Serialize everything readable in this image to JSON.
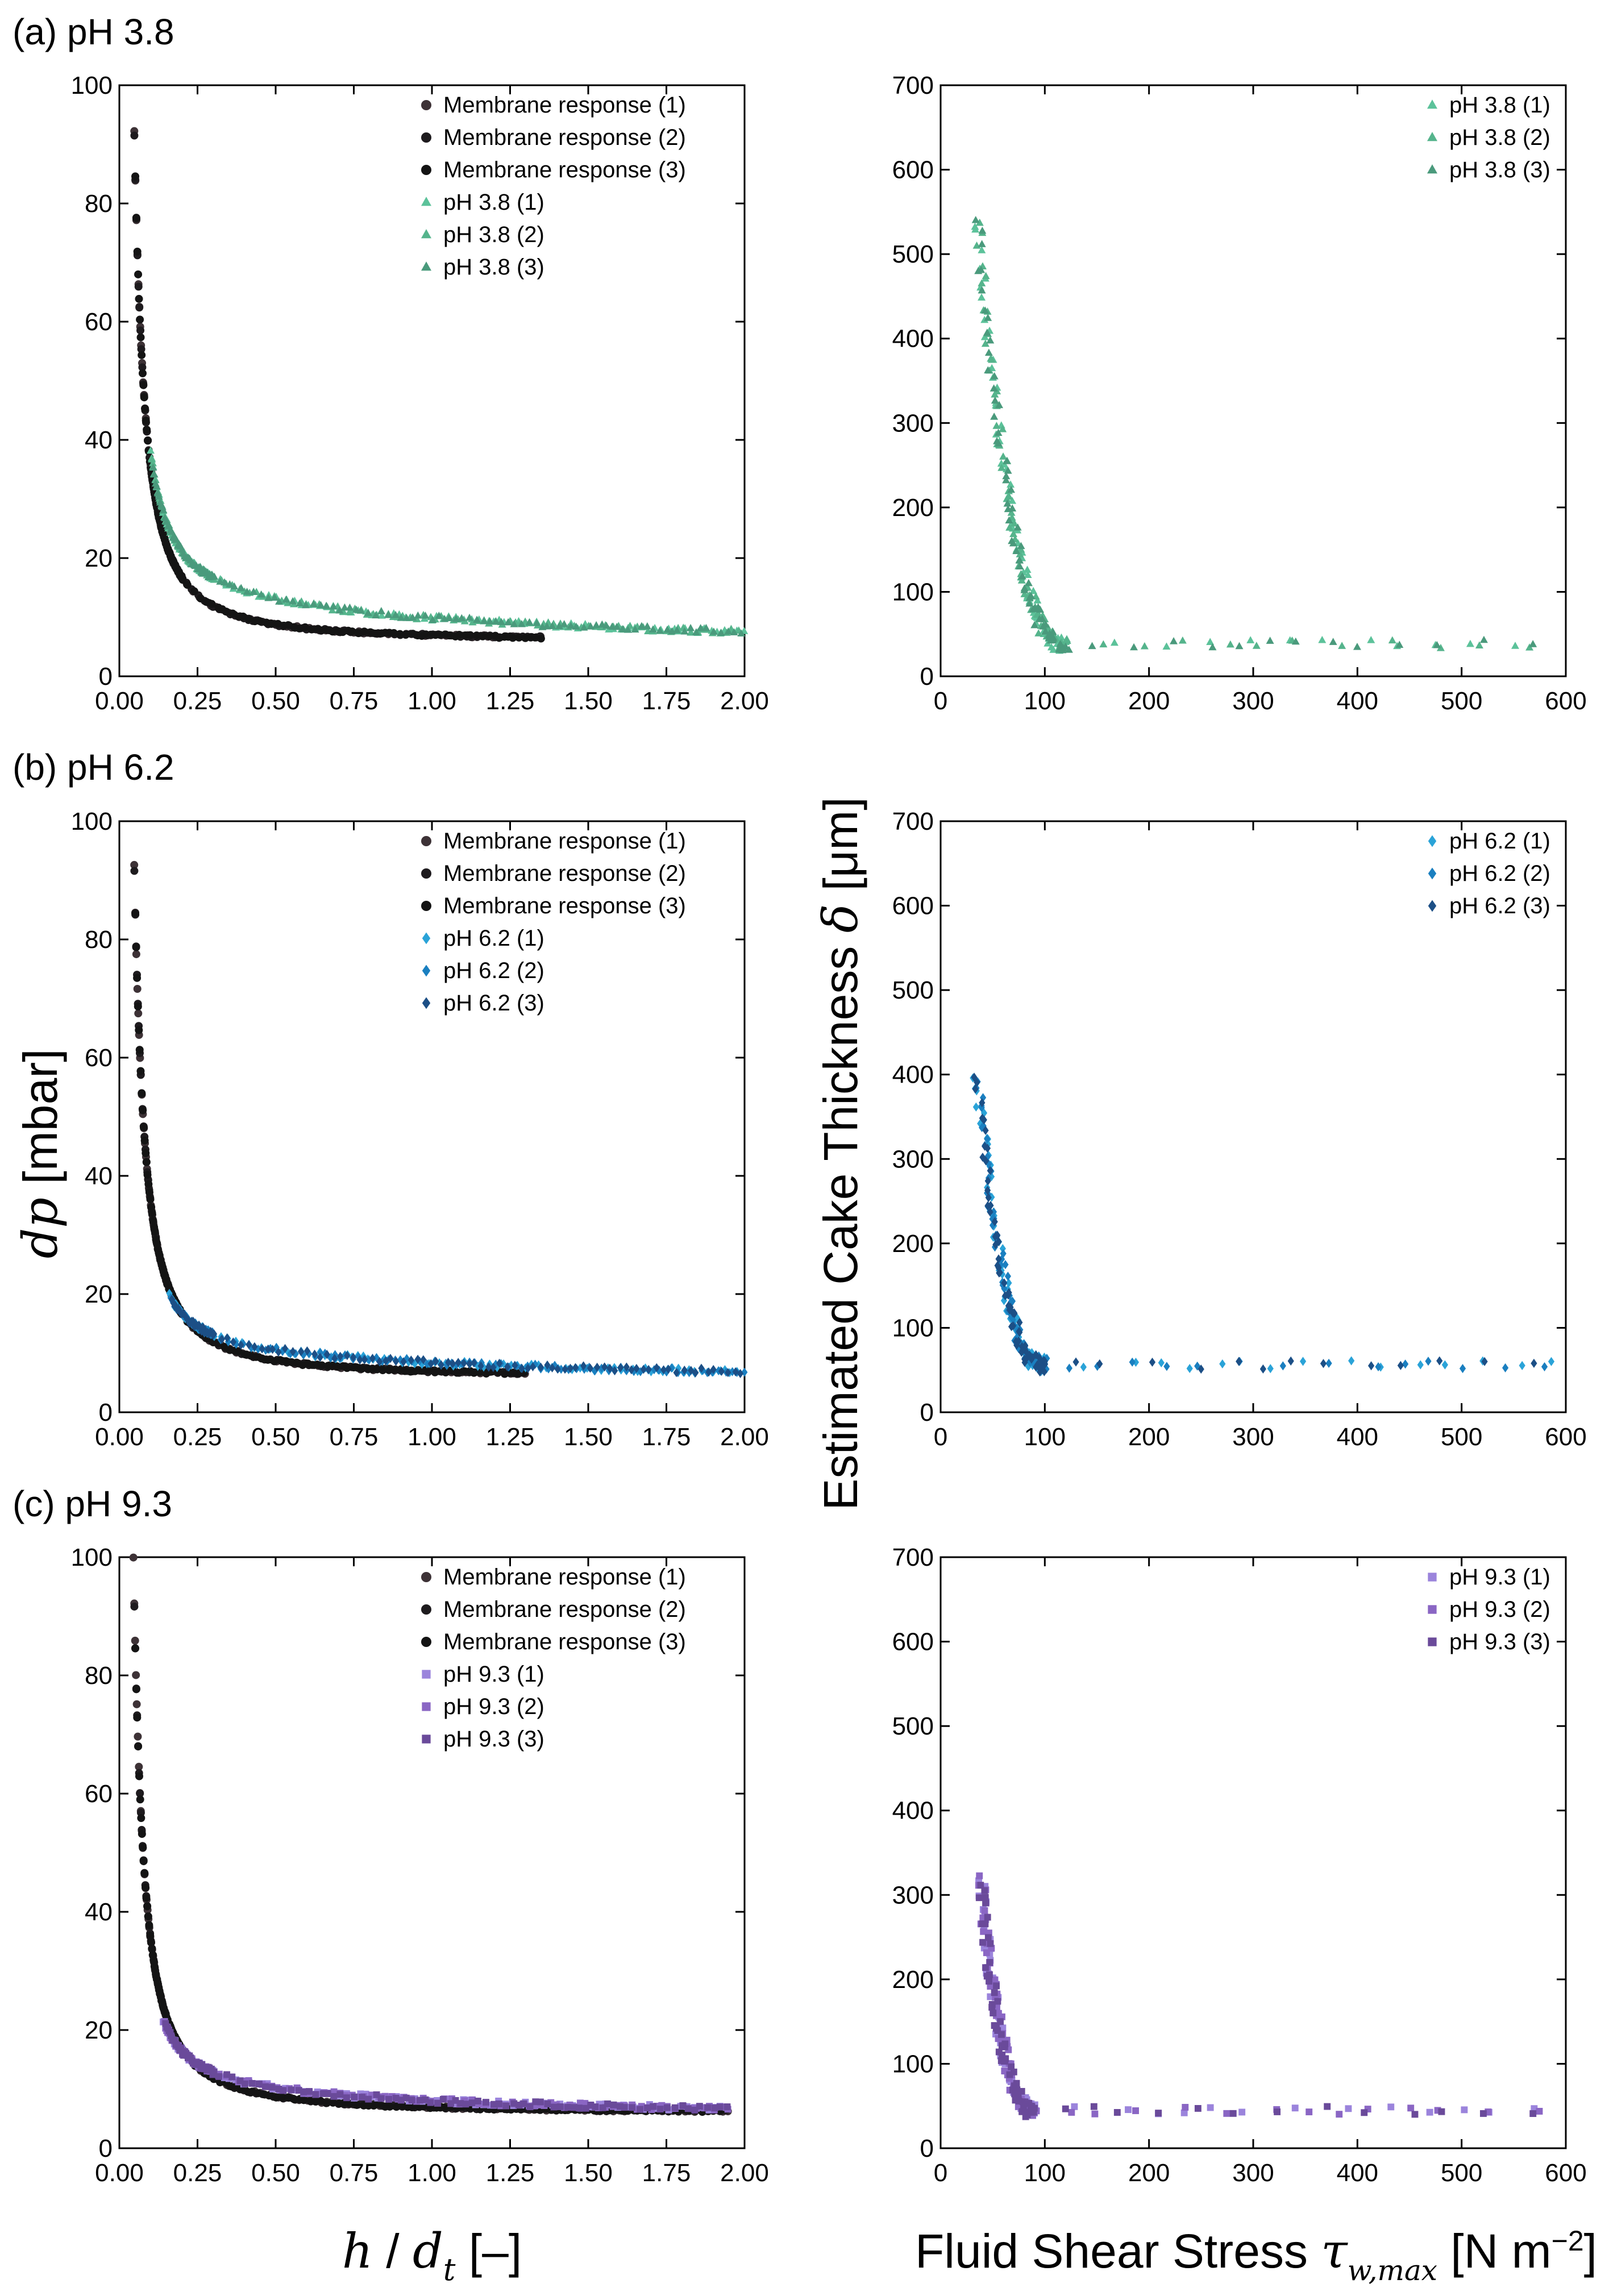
{
  "figure": {
    "ylabel_left": "dp [mbar]",
    "ylabel_left_var": "dp",
    "ylabel_left_unit": " [mbar]",
    "xlabel_left_var_h": "h",
    "xlabel_left_slash": " / ",
    "xlabel_left_var_d": "d",
    "xlabel_left_sub": "t",
    "xlabel_left_unit": " [–]",
    "ylabel_right_text": "Estimated Cake Thickness ",
    "ylabel_right_var": "δ",
    "ylabel_right_unit": " [μm]",
    "xlabel_right_text": "Fluid Shear Stress ",
    "xlabel_right_var": "τ",
    "xlabel_right_sub": "w,max",
    "xlabel_right_unit": " [N m",
    "xlabel_right_exp": "−2",
    "xlabel_right_close": "]"
  },
  "colors": {
    "membrane": [
      "#3d3236",
      "#1e1b1e",
      "#141414"
    ],
    "ph38": [
      "#5cc29a",
      "#55b48c",
      "#4a9a7c"
    ],
    "ph62": [
      "#2aa3d8",
      "#1a7fc0",
      "#1c4f86"
    ],
    "ph93": [
      "#9b84dc",
      "#8a66c4",
      "#6a4a9a"
    ]
  },
  "chart_data": [
    {
      "id": "a-left",
      "panel_label": "(a) pH 3.8",
      "type": "scatter",
      "xlim": [
        0,
        2
      ],
      "ylim": [
        0,
        100
      ],
      "xticks": [
        "0.00",
        "0.25",
        "0.50",
        "0.75",
        "1.00",
        "1.25",
        "1.50",
        "1.75",
        "2.00"
      ],
      "yticks": [
        "0",
        "20",
        "40",
        "60",
        "80",
        "100"
      ],
      "legend": [
        "Membrane response (1)",
        "Membrane response (2)",
        "Membrane response (3)",
        "pH 3.8 (1)",
        "pH 3.8 (2)",
        "pH 3.8 (3)"
      ],
      "membrane_curve": {
        "x_start": 0.045,
        "x_end": 1.35,
        "floor": 5.9,
        "a": 1.05,
        "p": 1.45
      },
      "sample_curve": {
        "x_start": 0.1,
        "x_end": 2.0,
        "floor": 6.0,
        "a": 0.8,
        "p": 1.5,
        "plateau": 7.5,
        "decay": 0.9
      },
      "series_marker": "triangle"
    },
    {
      "id": "a-right",
      "type": "scatter",
      "xlim": [
        0,
        600
      ],
      "ylim": [
        0,
        700
      ],
      "xticks": [
        "0",
        "100",
        "200",
        "300",
        "400",
        "500",
        "600"
      ],
      "yticks": [
        "0",
        "100",
        "200",
        "300",
        "400",
        "500",
        "600",
        "700"
      ],
      "legend": [
        "pH 3.8 (1)",
        "pH 3.8 (2)",
        "pH 3.8 (3)"
      ],
      "thickness_curve": {
        "x_peak": 35,
        "y_peak": 540,
        "x_knee": 120,
        "floor": 38,
        "x_end": 575
      },
      "series_marker": "triangle"
    },
    {
      "id": "b-left",
      "panel_label": "(b) pH 6.2",
      "type": "scatter",
      "xlim": [
        0,
        2
      ],
      "ylim": [
        0,
        100
      ],
      "xticks": [
        "0.00",
        "0.25",
        "0.50",
        "0.75",
        "1.00",
        "1.25",
        "1.50",
        "1.75",
        "2.00"
      ],
      "yticks": [
        "0",
        "20",
        "40",
        "60",
        "80",
        "100"
      ],
      "legend": [
        "Membrane response (1)",
        "Membrane response (2)",
        "Membrane response (3)",
        "pH 6.2 (1)",
        "pH 6.2 (2)",
        "pH 6.2 (3)"
      ],
      "membrane_curve": {
        "x_start": 0.045,
        "x_end": 1.3,
        "floor": 5.9,
        "a": 1.05,
        "p": 1.45
      },
      "sample_curve": {
        "x_start": 0.16,
        "x_end": 2.0,
        "floor": 6.0,
        "a": 0.4,
        "p": 1.7,
        "plateau": 5.5,
        "decay": 1.0
      },
      "series_marker": "diamond"
    },
    {
      "id": "b-right",
      "type": "scatter",
      "xlim": [
        0,
        600
      ],
      "ylim": [
        0,
        700
      ],
      "xticks": [
        "0",
        "100",
        "200",
        "300",
        "400",
        "500",
        "600"
      ],
      "yticks": [
        "0",
        "100",
        "200",
        "300",
        "400",
        "500",
        "600",
        "700"
      ],
      "legend": [
        "pH 6.2 (1)",
        "pH 6.2 (2)",
        "pH 6.2 (3)"
      ],
      "thickness_curve": {
        "x_peak": 35,
        "y_peak": 400,
        "x_knee": 100,
        "floor": 56,
        "x_end": 590
      },
      "series_marker": "diamond"
    },
    {
      "id": "c-left",
      "panel_label": "(c) pH 9.3",
      "type": "scatter",
      "xlim": [
        0,
        2
      ],
      "ylim": [
        0,
        100
      ],
      "xticks": [
        "0.00",
        "0.25",
        "0.50",
        "0.75",
        "1.00",
        "1.25",
        "1.50",
        "1.75",
        "2.00"
      ],
      "yticks": [
        "0",
        "20",
        "40",
        "60",
        "80",
        "100"
      ],
      "legend": [
        "Membrane response (1)",
        "Membrane response (2)",
        "Membrane response (3)",
        "pH 9.3 (1)",
        "pH 9.3 (2)",
        "pH 9.3 (3)"
      ],
      "membrane_curve": {
        "x_start": 0.045,
        "x_end": 1.95,
        "floor": 5.9,
        "a": 1.05,
        "p": 1.45
      },
      "sample_curve": {
        "x_start": 0.14,
        "x_end": 1.95,
        "floor": 6.0,
        "a": 0.5,
        "p": 1.6,
        "plateau": 4.8,
        "decay": 1.1
      },
      "series_marker": "square"
    },
    {
      "id": "c-right",
      "type": "scatter",
      "xlim": [
        0,
        600
      ],
      "ylim": [
        0,
        700
      ],
      "xticks": [
        "0",
        "100",
        "200",
        "300",
        "400",
        "500",
        "600"
      ],
      "yticks": [
        "0",
        "100",
        "200",
        "300",
        "400",
        "500",
        "600",
        "700"
      ],
      "legend": [
        "pH 9.3 (1)",
        "pH 9.3 (2)",
        "pH 9.3 (3)"
      ],
      "thickness_curve": {
        "x_peak": 38,
        "y_peak": 320,
        "x_knee": 90,
        "floor": 45,
        "x_end": 575
      },
      "series_marker": "square"
    }
  ]
}
